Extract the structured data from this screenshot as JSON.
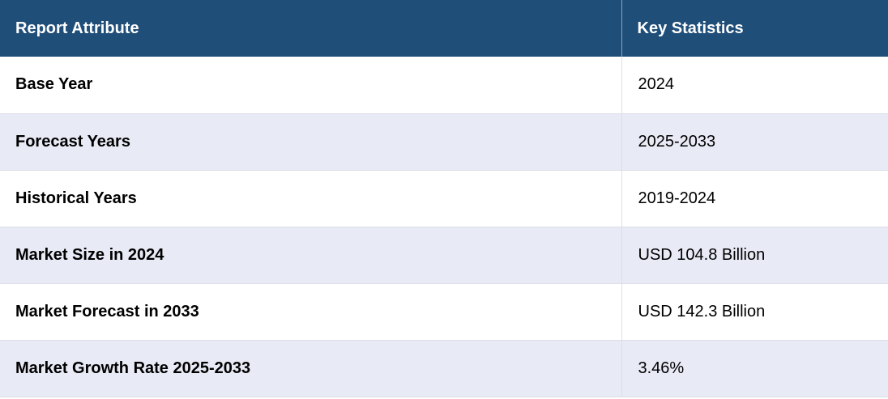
{
  "table": {
    "headers": [
      "Report Attribute",
      "Key Statistics"
    ],
    "rows": [
      [
        "Base Year",
        "2024"
      ],
      [
        "Forecast Years",
        "2025-2033"
      ],
      [
        "Historical Years",
        "2019-2024"
      ],
      [
        "Market Size in 2024",
        "USD 104.8 Billion"
      ],
      [
        "Market Forecast in 2033",
        "USD 142.3 Billion"
      ],
      [
        "Market Growth Rate 2025-2033",
        "3.46%"
      ]
    ]
  },
  "colors": {
    "header_bg": "#1f4e79",
    "header_text": "#ffffff",
    "row_alt_bg": "#e8eaf5",
    "row_bg": "#ffffff"
  }
}
